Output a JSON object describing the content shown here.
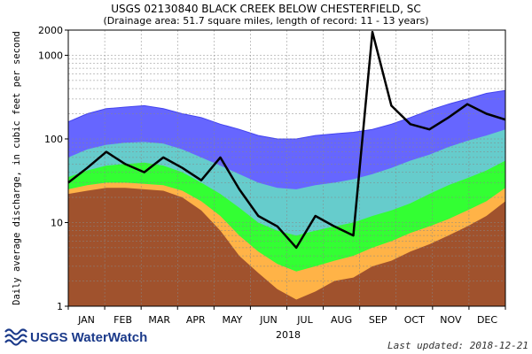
{
  "chart_data": {
    "type": "area",
    "title": "USGS 02130840 BLACK CREEK BELOW CHESTERFIELD, SC",
    "subtitle": "(Drainage area: 51.7 square miles, length of record: 11 - 13 years)",
    "ylabel": "Daily average discharge, in cubic feet per second",
    "xlabel": "2018",
    "y_scale": "log",
    "ylim": [
      1,
      2000
    ],
    "y_ticks": [
      {
        "value": 1,
        "label": "1"
      },
      {
        "value": 10,
        "label": "10"
      },
      {
        "value": 100,
        "label": "100"
      },
      {
        "value": 1000,
        "label": "1000"
      },
      {
        "value": 2000,
        "label": "2000"
      }
    ],
    "categories": [
      "JAN",
      "FEB",
      "MAR",
      "APR",
      "MAY",
      "JUN",
      "JUL",
      "AUG",
      "SEP",
      "OCT",
      "NOV",
      "DEC"
    ],
    "x": [
      "Jan 1",
      "Jan 16",
      "Feb 1",
      "Feb 16",
      "Mar 1",
      "Mar 16",
      "Apr 1",
      "Apr 16",
      "May 1",
      "May 16",
      "Jun 1",
      "Jun 16",
      "Jul 1",
      "Jul 16",
      "Aug 1",
      "Aug 16",
      "Sep 1",
      "Sep 16",
      "Oct 1",
      "Oct 16",
      "Nov 1",
      "Nov 16",
      "Dec 1",
      "Dec 16"
    ],
    "grid": true,
    "series": [
      {
        "color": "#a0522d",
        "values": [
          22,
          24,
          26,
          26,
          25,
          24,
          20,
          14,
          8,
          4,
          2.5,
          1.6,
          1.2,
          1.5,
          2.0,
          2.2,
          3.0,
          3.5,
          4.5,
          5.5,
          7,
          9,
          12,
          18
        ]
      },
      {
        "color": "#ffb347",
        "values": [
          25,
          28,
          30,
          30,
          29,
          28,
          24,
          18,
          12,
          7,
          4.5,
          3.2,
          2.6,
          3.0,
          3.5,
          4.0,
          5.0,
          6.0,
          7.5,
          9,
          11,
          14,
          18,
          26
        ]
      },
      {
        "color": "#33ff33",
        "values": [
          35,
          42,
          48,
          50,
          52,
          48,
          40,
          30,
          22,
          15,
          10,
          8,
          7,
          8,
          9,
          10,
          12,
          14,
          17,
          22,
          28,
          34,
          42,
          55
        ]
      },
      {
        "color": "#66cccc",
        "values": [
          60,
          75,
          85,
          90,
          92,
          88,
          75,
          60,
          48,
          38,
          30,
          26,
          25,
          28,
          30,
          33,
          38,
          45,
          55,
          65,
          80,
          95,
          110,
          130
        ]
      },
      {
        "color": "#6666ff",
        "values": [
          160,
          200,
          230,
          240,
          250,
          230,
          200,
          180,
          150,
          130,
          110,
          100,
          100,
          110,
          115,
          120,
          130,
          150,
          180,
          220,
          260,
          300,
          350,
          380
        ]
      },
      {
        "color": "#000000",
        "values": [
          30,
          45,
          70,
          50,
          40,
          60,
          45,
          32,
          60,
          25,
          12,
          9,
          5,
          12,
          9,
          7,
          1900,
          250,
          150,
          130,
          180,
          260,
          200,
          170
        ]
      }
    ]
  },
  "footer": {
    "logo_text": "USGS WaterWatch",
    "updated": "Last updated: 2018-12-21"
  },
  "colors": {
    "brown": "#a0522d",
    "orange": "#ffb347",
    "green": "#33ff33",
    "cyan": "#66cccc",
    "blue": "#6666ff",
    "flow": "#000000",
    "logo": "#1b3a8a"
  }
}
